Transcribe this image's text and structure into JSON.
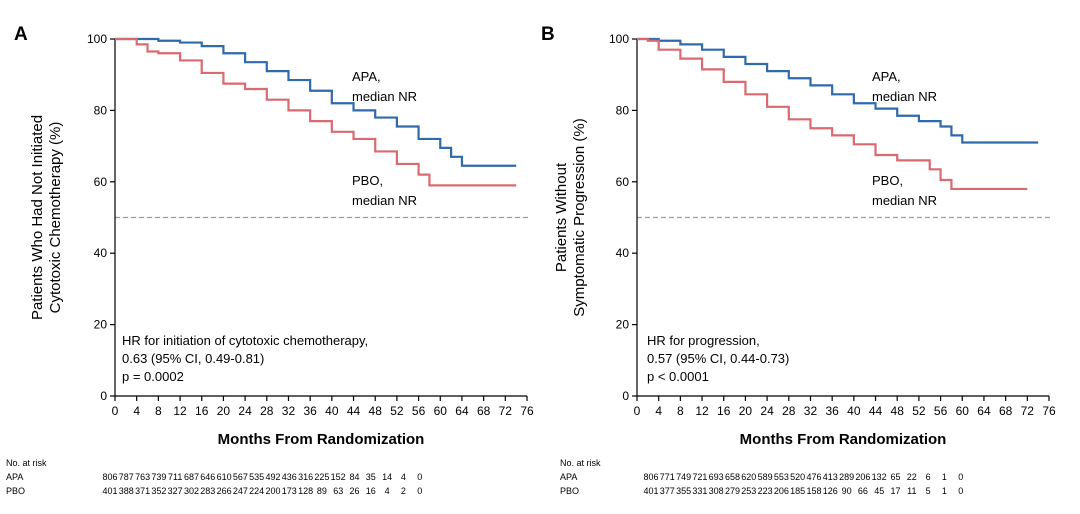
{
  "chart_data": [
    {
      "type": "line",
      "panel_label": "A",
      "ylabel_lines": [
        "Patients Who Had Not Initiated",
        "Cytotoxic Chemotherapy (%)"
      ],
      "xlabel": "Months From Randomization",
      "xlim": [
        0,
        76
      ],
      "ylim": [
        0,
        100
      ],
      "x_ticks": [
        "0",
        "4",
        "8",
        "12",
        "16",
        "20",
        "24",
        "28",
        "32",
        "36",
        "40",
        "44",
        "48",
        "52",
        "56",
        "60",
        "64",
        "68",
        "72",
        "76"
      ],
      "y_ticks": [
        "0",
        "20",
        "40",
        "60",
        "80",
        "100"
      ],
      "reference_line_y": 50,
      "series": [
        {
          "name": "APA",
          "color": "#2f6aad",
          "label_lines": [
            "APA,",
            "median NR"
          ],
          "points": [
            [
              0,
              100
            ],
            [
              4,
              100
            ],
            [
              8,
              99.5
            ],
            [
              12,
              99
            ],
            [
              16,
              98
            ],
            [
              20,
              96
            ],
            [
              24,
              93.5
            ],
            [
              28,
              91
            ],
            [
              32,
              88.5
            ],
            [
              36,
              85.5
            ],
            [
              40,
              82
            ],
            [
              44,
              80
            ],
            [
              48,
              78
            ],
            [
              52,
              75.5
            ],
            [
              56,
              72
            ],
            [
              60,
              69.5
            ],
            [
              62,
              67
            ],
            [
              64,
              64.5
            ],
            [
              74,
              64.5
            ]
          ]
        },
        {
          "name": "PBO",
          "color": "#d96a70",
          "label_lines": [
            "PBO,",
            "median NR"
          ],
          "points": [
            [
              0,
              100
            ],
            [
              2,
              100
            ],
            [
              4,
              98.5
            ],
            [
              6,
              96.5
            ],
            [
              8,
              96
            ],
            [
              12,
              94
            ],
            [
              16,
              90.5
            ],
            [
              20,
              87.5
            ],
            [
              24,
              86
            ],
            [
              28,
              83
            ],
            [
              32,
              80
            ],
            [
              36,
              77
            ],
            [
              40,
              74
            ],
            [
              44,
              72
            ],
            [
              48,
              68.5
            ],
            [
              52,
              65
            ],
            [
              56,
              62
            ],
            [
              58,
              59
            ],
            [
              74,
              59
            ]
          ]
        }
      ],
      "annotation_lines": [
        "HR for initiation of cytotoxic chemotherapy,",
        "0.63 (95% CI, 0.49-0.81)",
        "p = 0.0002"
      ],
      "risk_table": {
        "header": "No. at risk",
        "rows": [
          {
            "label": "APA",
            "values": [
              "806",
              "787",
              "763",
              "739",
              "711",
              "687",
              "646",
              "610",
              "567",
              "535",
              "492",
              "436",
              "316",
              "225",
              "152",
              "84",
              "35",
              "14",
              "4",
              "0"
            ]
          },
          {
            "label": "PBO",
            "values": [
              "401",
              "388",
              "371",
              "352",
              "327",
              "302",
              "283",
              "266",
              "247",
              "224",
              "200",
              "173",
              "128",
              "89",
              "63",
              "26",
              "16",
              "4",
              "2",
              "0"
            ]
          }
        ]
      }
    },
    {
      "type": "line",
      "panel_label": "B",
      "ylabel_lines": [
        "Patients Without",
        "Symptomatic Progression (%)"
      ],
      "xlabel": "Months From Randomization",
      "xlim": [
        0,
        76
      ],
      "ylim": [
        0,
        100
      ],
      "x_ticks": [
        "0",
        "4",
        "8",
        "12",
        "16",
        "20",
        "24",
        "28",
        "32",
        "36",
        "40",
        "44",
        "48",
        "52",
        "56",
        "60",
        "64",
        "68",
        "72",
        "76"
      ],
      "y_ticks": [
        "0",
        "20",
        "40",
        "60",
        "80",
        "100"
      ],
      "reference_line_y": 50,
      "series": [
        {
          "name": "APA",
          "color": "#2f6aad",
          "label_lines": [
            "APA,",
            "median NR"
          ],
          "points": [
            [
              0,
              100
            ],
            [
              4,
              99.5
            ],
            [
              8,
              98.5
            ],
            [
              12,
              97
            ],
            [
              16,
              95
            ],
            [
              20,
              93
            ],
            [
              24,
              91
            ],
            [
              28,
              89
            ],
            [
              32,
              87
            ],
            [
              36,
              84.5
            ],
            [
              40,
              82
            ],
            [
              44,
              80.5
            ],
            [
              48,
              78.5
            ],
            [
              52,
              77
            ],
            [
              56,
              75.5
            ],
            [
              58,
              73
            ],
            [
              60,
              71
            ],
            [
              74,
              71
            ]
          ]
        },
        {
          "name": "PBO",
          "color": "#d96a70",
          "label_lines": [
            "PBO,",
            "median NR"
          ],
          "points": [
            [
              0,
              100
            ],
            [
              2,
              99.5
            ],
            [
              4,
              97
            ],
            [
              8,
              94.5
            ],
            [
              12,
              91.5
            ],
            [
              16,
              88
            ],
            [
              20,
              84.5
            ],
            [
              24,
              81
            ],
            [
              28,
              77.5
            ],
            [
              32,
              75
            ],
            [
              36,
              73
            ],
            [
              40,
              70.5
            ],
            [
              44,
              67.5
            ],
            [
              48,
              66
            ],
            [
              52,
              66
            ],
            [
              54,
              63.5
            ],
            [
              56,
              60.5
            ],
            [
              58,
              58
            ],
            [
              72,
              58
            ]
          ]
        }
      ],
      "annotation_lines": [
        "HR for progression,",
        "0.57 (95% CI, 0.44-0.73)",
        "p < 0.0001"
      ],
      "risk_table": {
        "header": "No. at risk",
        "rows": [
          {
            "label": "APA",
            "values": [
              "806",
              "771",
              "749",
              "721",
              "693",
              "658",
              "620",
              "589",
              "553",
              "520",
              "476",
              "413",
              "289",
              "206",
              "132",
              "65",
              "22",
              "6",
              "1",
              "0"
            ]
          },
          {
            "label": "PBO",
            "values": [
              "401",
              "377",
              "355",
              "331",
              "308",
              "279",
              "253",
              "223",
              "206",
              "185",
              "158",
              "126",
              "90",
              "66",
              "45",
              "17",
              "11",
              "5",
              "1",
              "0"
            ]
          }
        ]
      }
    }
  ]
}
